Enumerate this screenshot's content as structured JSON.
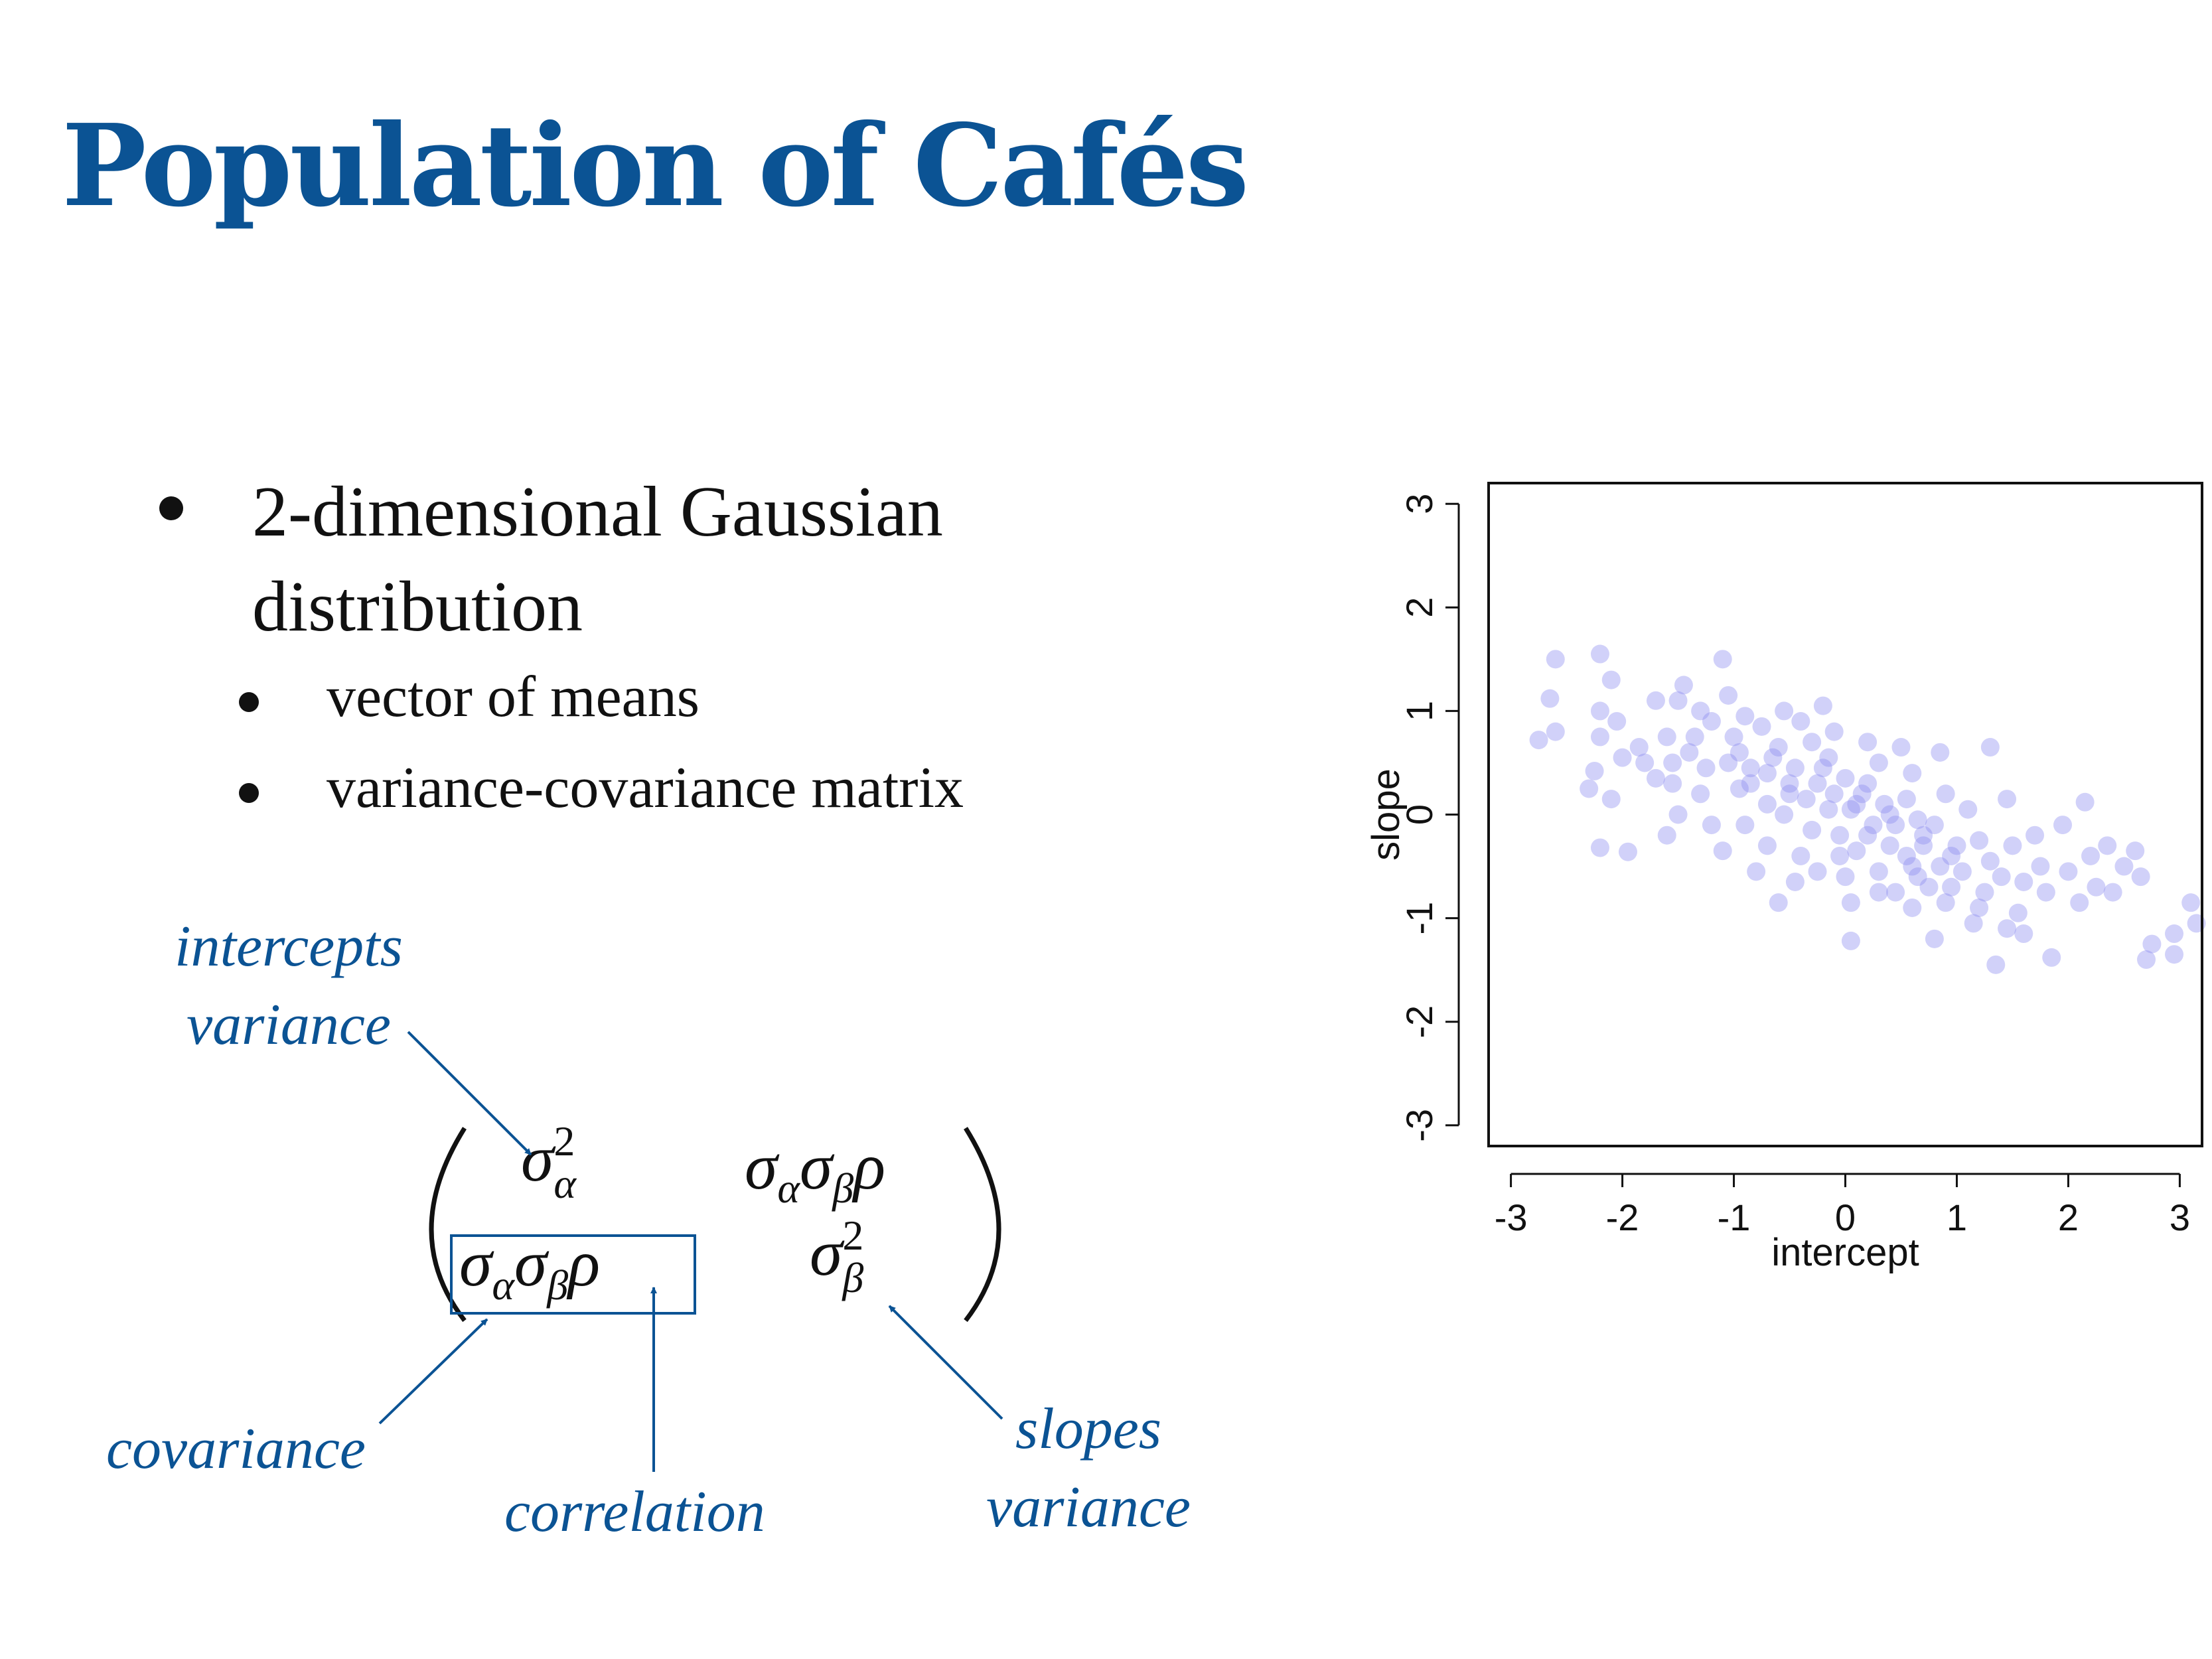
{
  "slide": {
    "title": "Population of Cafés",
    "bullets": [
      {
        "text": "2-dimensional Gaussian distribution",
        "sub": [
          "vector of means",
          "variance-covariance matrix"
        ]
      }
    ],
    "annotations": {
      "intercepts_variance": [
        "intercepts",
        "variance"
      ],
      "covariance": "covariance",
      "correlation": "correlation",
      "slopes_variance": [
        "slopes",
        "variance"
      ]
    },
    "matrix": {
      "top_left": "σ²α",
      "top_right": "σασβρ",
      "bottom_left": "σασβρ",
      "bottom_right": "σ²β"
    },
    "accent_color": "#0b5394"
  },
  "chart_data": {
    "type": "scatter",
    "xlabel": "intercept",
    "ylabel": "slope",
    "xlim": [
      -3.2,
      3.2
    ],
    "ylim": [
      -3.2,
      3.2
    ],
    "xticks": [
      -3,
      -2,
      -1,
      0,
      1,
      2,
      3
    ],
    "yticks": [
      -3,
      -2,
      -1,
      0,
      1,
      2,
      3
    ],
    "point_color": "#8c8cf0",
    "point_opacity": 0.4,
    "grid": false,
    "points": [
      [
        -2.6,
        1.5
      ],
      [
        -2.65,
        1.12
      ],
      [
        -2.6,
        0.8
      ],
      [
        -2.75,
        0.72
      ],
      [
        -2.2,
        1.55
      ],
      [
        -2.1,
        1.3
      ],
      [
        -2.2,
        1.0
      ],
      [
        -2.05,
        0.9
      ],
      [
        -2.2,
        0.75
      ],
      [
        -2.0,
        0.55
      ],
      [
        -2.25,
        0.42
      ],
      [
        -2.1,
        0.15
      ],
      [
        -2.2,
        -0.32
      ],
      [
        -1.95,
        -0.36
      ],
      [
        -2.3,
        0.25
      ],
      [
        -1.7,
        1.1
      ],
      [
        -1.5,
        1.1
      ],
      [
        -1.45,
        1.25
      ],
      [
        -1.4,
        0.6
      ],
      [
        -1.55,
        0.5
      ],
      [
        -1.7,
        0.35
      ],
      [
        -1.85,
        0.65
      ],
      [
        -1.3,
        1.0
      ],
      [
        -1.6,
        0.75
      ],
      [
        -1.1,
        1.5
      ],
      [
        -1.05,
        1.15
      ],
      [
        -1.2,
        0.9
      ],
      [
        -1.0,
        0.75
      ],
      [
        -1.3,
        0.2
      ],
      [
        -1.5,
        0.0
      ],
      [
        -1.6,
        -0.2
      ],
      [
        -1.2,
        -0.1
      ],
      [
        -1.1,
        -0.35
      ],
      [
        -0.9,
        0.95
      ],
      [
        -0.75,
        0.85
      ],
      [
        -0.6,
        0.65
      ],
      [
        -0.85,
        0.45
      ],
      [
        -0.95,
        0.25
      ],
      [
        -0.7,
        0.1
      ],
      [
        -0.9,
        -0.1
      ],
      [
        -0.7,
        -0.3
      ],
      [
        -0.8,
        -0.55
      ],
      [
        -0.6,
        -0.85
      ],
      [
        -0.45,
        -0.65
      ],
      [
        -0.55,
        1.0
      ],
      [
        -0.4,
        0.9
      ],
      [
        -0.3,
        0.7
      ],
      [
        -0.45,
        0.45
      ],
      [
        -0.5,
        0.3
      ],
      [
        -0.35,
        0.15
      ],
      [
        -0.55,
        0.0
      ],
      [
        -0.3,
        -0.15
      ],
      [
        -0.4,
        -0.4
      ],
      [
        -0.25,
        -0.55
      ],
      [
        -0.2,
        1.05
      ],
      [
        -0.1,
        0.8
      ],
      [
        -0.15,
        0.55
      ],
      [
        0.0,
        0.35
      ],
      [
        -0.1,
        0.2
      ],
      [
        0.05,
        0.05
      ],
      [
        -0.05,
        -0.2
      ],
      [
        0.1,
        -0.35
      ],
      [
        0.0,
        -0.6
      ],
      [
        0.05,
        -0.85
      ],
      [
        0.05,
        -1.22
      ],
      [
        0.2,
        0.7
      ],
      [
        0.3,
        0.5
      ],
      [
        0.2,
        0.3
      ],
      [
        0.35,
        0.1
      ],
      [
        0.25,
        -0.1
      ],
      [
        0.4,
        -0.3
      ],
      [
        0.3,
        -0.55
      ],
      [
        0.45,
        -0.75
      ],
      [
        0.5,
        0.65
      ],
      [
        0.6,
        0.4
      ],
      [
        0.55,
        0.15
      ],
      [
        0.65,
        -0.05
      ],
      [
        0.7,
        -0.3
      ],
      [
        0.6,
        -0.5
      ],
      [
        0.75,
        -0.7
      ],
      [
        0.85,
        0.6
      ],
      [
        0.9,
        0.2
      ],
      [
        0.8,
        -0.1
      ],
      [
        0.95,
        -0.4
      ],
      [
        0.9,
        -0.85
      ],
      [
        0.8,
        -1.2
      ],
      [
        1.1,
        0.05
      ],
      [
        1.2,
        -0.25
      ],
      [
        1.05,
        -0.55
      ],
      [
        1.25,
        -0.75
      ],
      [
        1.15,
        -1.05
      ],
      [
        1.35,
        -1.45
      ],
      [
        1.3,
        0.65
      ],
      [
        1.45,
        0.15
      ],
      [
        1.5,
        -0.3
      ],
      [
        1.4,
        -0.6
      ],
      [
        1.55,
        -0.95
      ],
      [
        1.6,
        -1.15
      ],
      [
        1.7,
        -0.2
      ],
      [
        1.75,
        -0.5
      ],
      [
        1.8,
        -0.75
      ],
      [
        1.85,
        -1.38
      ],
      [
        1.95,
        -0.1
      ],
      [
        2.0,
        -0.55
      ],
      [
        2.1,
        -0.85
      ],
      [
        2.15,
        0.12
      ],
      [
        2.2,
        -0.4
      ],
      [
        2.25,
        -0.7
      ],
      [
        2.35,
        -0.3
      ],
      [
        2.4,
        -0.75
      ],
      [
        2.5,
        -0.5
      ],
      [
        2.6,
        -0.35
      ],
      [
        2.65,
        -0.6
      ],
      [
        2.7,
        -1.4
      ],
      [
        2.75,
        -1.25
      ],
      [
        2.95,
        -1.35
      ],
      [
        2.95,
        -1.15
      ],
      [
        3.1,
        -0.85
      ],
      [
        3.15,
        -1.05
      ],
      [
        -1.35,
        0.75
      ],
      [
        -0.65,
        0.55
      ],
      [
        -0.2,
        0.45
      ],
      [
        0.15,
        0.2
      ],
      [
        0.45,
        -0.1
      ],
      [
        0.7,
        -0.2
      ],
      [
        1.0,
        -0.3
      ],
      [
        -0.85,
        0.3
      ],
      [
        -0.5,
        0.2
      ],
      [
        -0.15,
        0.05
      ],
      [
        0.2,
        -0.2
      ],
      [
        0.55,
        -0.4
      ],
      [
        0.85,
        -0.5
      ],
      [
        -1.05,
        0.5
      ],
      [
        -0.7,
        0.4
      ],
      [
        -0.25,
        0.3
      ],
      [
        0.1,
        0.1
      ],
      [
        0.4,
        0.0
      ],
      [
        0.65,
        -0.6
      ],
      [
        1.3,
        -0.45
      ],
      [
        1.6,
        -0.65
      ],
      [
        -1.55,
        0.3
      ],
      [
        -1.8,
        0.5
      ],
      [
        -1.25,
        0.45
      ],
      [
        -0.95,
        0.6
      ],
      [
        -0.05,
        -0.4
      ],
      [
        0.3,
        -0.75
      ],
      [
        0.6,
        -0.9
      ],
      [
        0.95,
        -0.7
      ],
      [
        1.2,
        -0.9
      ],
      [
        1.45,
        -1.1
      ]
    ]
  }
}
